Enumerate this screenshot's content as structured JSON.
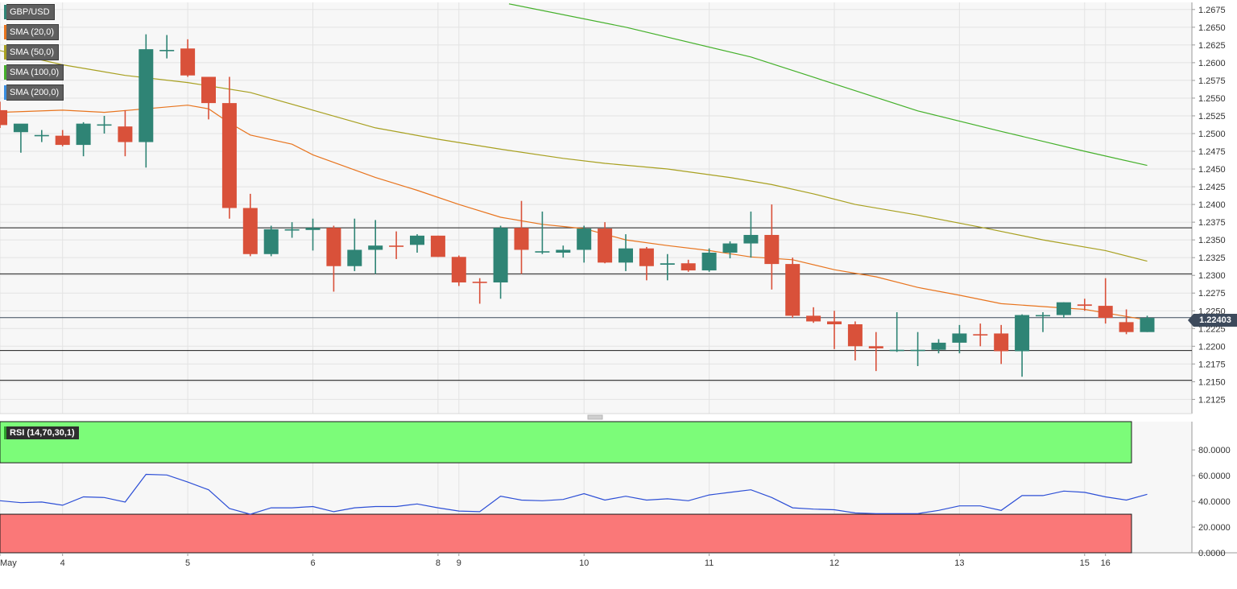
{
  "chart_data": {
    "type": "candlestick",
    "symbol": "GBP/USD",
    "last_price": "1.22403",
    "indicators": [
      {
        "label": "SMA (20,0)",
        "color": "#e8741e"
      },
      {
        "label": "SMA (50,0)",
        "color": "#a8a020"
      },
      {
        "label": "SMA (100,0)",
        "color": "#44b02a"
      },
      {
        "label": "SMA (200,0)",
        "color": "#3a8ee0"
      }
    ],
    "price_axis": {
      "ylim": [
        1.2105,
        1.2685
      ],
      "ticks": [
        "1.2675",
        "1.2650",
        "1.2625",
        "1.2600",
        "1.2575",
        "1.2550",
        "1.2525",
        "1.2500",
        "1.2475",
        "1.2450",
        "1.2425",
        "1.2400",
        "1.2375",
        "1.2350",
        "1.2325",
        "1.2300",
        "1.2275",
        "1.2250",
        "1.2225",
        "1.2200",
        "1.2175",
        "1.2150",
        "1.2125"
      ]
    },
    "x_axis": {
      "labels": [
        {
          "text": "May",
          "index": 0
        },
        {
          "text": "4",
          "index": 3
        },
        {
          "text": "5",
          "index": 9
        },
        {
          "text": "6",
          "index": 15
        },
        {
          "text": "8",
          "index": 21
        },
        {
          "text": "9",
          "index": 22
        },
        {
          "text": "10",
          "index": 28
        },
        {
          "text": "11",
          "index": 34
        },
        {
          "text": "12",
          "index": 40
        },
        {
          "text": "13",
          "index": 46
        },
        {
          "text": "15",
          "index": 52
        },
        {
          "text": "16",
          "index": 53
        }
      ]
    },
    "horizontal_levels": [
      1.2367,
      1.2302,
      1.2194,
      1.2152
    ],
    "last_price_line": 1.22403,
    "candles": [
      {
        "o": 1.2533,
        "h": 1.2545,
        "l": 1.2508,
        "c": 1.2512
      },
      {
        "o": 1.2502,
        "h": 1.251,
        "l": 1.2473,
        "c": 1.2514
      },
      {
        "o": 1.2497,
        "h": 1.2505,
        "l": 1.2488,
        "c": 1.2498
      },
      {
        "o": 1.2497,
        "h": 1.2505,
        "l": 1.2482,
        "c": 1.2484
      },
      {
        "o": 1.2484,
        "h": 1.2516,
        "l": 1.2468,
        "c": 1.2514
      },
      {
        "o": 1.2513,
        "h": 1.2525,
        "l": 1.25,
        "c": 1.2513
      },
      {
        "o": 1.251,
        "h": 1.2533,
        "l": 1.2468,
        "c": 1.2488
      },
      {
        "o": 1.2488,
        "h": 1.264,
        "l": 1.2452,
        "c": 1.2619
      },
      {
        "o": 1.2618,
        "h": 1.2639,
        "l": 1.2606,
        "c": 1.2618
      },
      {
        "o": 1.262,
        "h": 1.2633,
        "l": 1.258,
        "c": 1.2582
      },
      {
        "o": 1.258,
        "h": 1.258,
        "l": 1.252,
        "c": 1.2543
      },
      {
        "o": 1.2543,
        "h": 1.258,
        "l": 1.238,
        "c": 1.2395
      },
      {
        "o": 1.2395,
        "h": 1.2415,
        "l": 1.2327,
        "c": 1.233
      },
      {
        "o": 1.233,
        "h": 1.237,
        "l": 1.2327,
        "c": 1.2365
      },
      {
        "o": 1.2365,
        "h": 1.2375,
        "l": 1.2353,
        "c": 1.2365
      },
      {
        "o": 1.2364,
        "h": 1.238,
        "l": 1.2335,
        "c": 1.2367
      },
      {
        "o": 1.2367,
        "h": 1.237,
        "l": 1.2277,
        "c": 1.2313
      },
      {
        "o": 1.2313,
        "h": 1.238,
        "l": 1.2306,
        "c": 1.2336
      },
      {
        "o": 1.2336,
        "h": 1.2378,
        "l": 1.2302,
        "c": 1.2342
      },
      {
        "o": 1.2342,
        "h": 1.2362,
        "l": 1.2323,
        "c": 1.2341
      },
      {
        "o": 1.2343,
        "h": 1.2358,
        "l": 1.2332,
        "c": 1.2356
      },
      {
        "o": 1.2356,
        "h": 1.2356,
        "l": 1.2326,
        "c": 1.2326
      },
      {
        "o": 1.2326,
        "h": 1.2328,
        "l": 1.2285,
        "c": 1.229
      },
      {
        "o": 1.2291,
        "h": 1.2296,
        "l": 1.226,
        "c": 1.229
      },
      {
        "o": 1.229,
        "h": 1.237,
        "l": 1.2267,
        "c": 1.2367
      },
      {
        "o": 1.2367,
        "h": 1.2405,
        "l": 1.2302,
        "c": 1.2336
      },
      {
        "o": 1.2334,
        "h": 1.239,
        "l": 1.233,
        "c": 1.2334
      },
      {
        "o": 1.2332,
        "h": 1.2342,
        "l": 1.2325,
        "c": 1.2336
      },
      {
        "o": 1.2336,
        "h": 1.237,
        "l": 1.2318,
        "c": 1.2366
      },
      {
        "o": 1.2366,
        "h": 1.2375,
        "l": 1.2317,
        "c": 1.2318
      },
      {
        "o": 1.2318,
        "h": 1.2358,
        "l": 1.2306,
        "c": 1.2338
      },
      {
        "o": 1.2338,
        "h": 1.234,
        "l": 1.2293,
        "c": 1.2313
      },
      {
        "o": 1.2315,
        "h": 1.233,
        "l": 1.2293,
        "c": 1.2317
      },
      {
        "o": 1.2317,
        "h": 1.2322,
        "l": 1.2305,
        "c": 1.2307
      },
      {
        "o": 1.2307,
        "h": 1.2338,
        "l": 1.2305,
        "c": 1.2332
      },
      {
        "o": 1.2332,
        "h": 1.2348,
        "l": 1.2324,
        "c": 1.2345
      },
      {
        "o": 1.2345,
        "h": 1.239,
        "l": 1.2325,
        "c": 1.2357
      },
      {
        "o": 1.2357,
        "h": 1.24,
        "l": 1.228,
        "c": 1.2316
      },
      {
        "o": 1.2316,
        "h": 1.2325,
        "l": 1.224,
        "c": 1.2243
      },
      {
        "o": 1.2243,
        "h": 1.2255,
        "l": 1.2233,
        "c": 1.2235
      },
      {
        "o": 1.2235,
        "h": 1.225,
        "l": 1.2196,
        "c": 1.2231
      },
      {
        "o": 1.2231,
        "h": 1.2235,
        "l": 1.218,
        "c": 1.22
      },
      {
        "o": 1.22,
        "h": 1.222,
        "l": 1.2165,
        "c": 1.2197
      },
      {
        "o": 1.2195,
        "h": 1.2248,
        "l": 1.2192,
        "c": 1.2195
      },
      {
        "o": 1.2195,
        "h": 1.222,
        "l": 1.2172,
        "c": 1.2195
      },
      {
        "o": 1.2195,
        "h": 1.221,
        "l": 1.219,
        "c": 1.2205
      },
      {
        "o": 1.2205,
        "h": 1.223,
        "l": 1.219,
        "c": 1.2218
      },
      {
        "o": 1.2217,
        "h": 1.2232,
        "l": 1.22,
        "c": 1.2216
      },
      {
        "o": 1.2218,
        "h": 1.223,
        "l": 1.2175,
        "c": 1.2193
      },
      {
        "o": 1.2193,
        "h": 1.2245,
        "l": 1.2157,
        "c": 1.2244
      },
      {
        "o": 1.2244,
        "h": 1.2248,
        "l": 1.222,
        "c": 1.2244
      },
      {
        "o": 1.2244,
        "h": 1.2262,
        "l": 1.224,
        "c": 1.2262
      },
      {
        "o": 1.2259,
        "h": 1.2267,
        "l": 1.225,
        "c": 1.2257
      },
      {
        "o": 1.2257,
        "h": 1.2296,
        "l": 1.2232,
        "c": 1.224
      },
      {
        "o": 1.2234,
        "h": 1.2252,
        "l": 1.2217,
        "c": 1.222
      },
      {
        "o": 1.222,
        "h": 1.2243,
        "l": 1.222,
        "c": 1.224
      }
    ],
    "sma20": [
      [
        0,
        1.253
      ],
      [
        3,
        1.2533
      ],
      [
        5,
        1.253
      ],
      [
        7,
        1.2535
      ],
      [
        9,
        1.254
      ],
      [
        10,
        1.2535
      ],
      [
        11,
        1.2515
      ],
      [
        12,
        1.2498
      ],
      [
        14,
        1.2485
      ],
      [
        15,
        1.247
      ],
      [
        18,
        1.2438
      ],
      [
        20,
        1.242
      ],
      [
        22,
        1.24
      ],
      [
        24,
        1.2382
      ],
      [
        26,
        1.2372
      ],
      [
        28,
        1.2366
      ],
      [
        30,
        1.235
      ],
      [
        32,
        1.2342
      ],
      [
        34,
        1.2335
      ],
      [
        36,
        1.2326
      ],
      [
        38,
        1.2322
      ],
      [
        40,
        1.2308
      ],
      [
        42,
        1.2298
      ],
      [
        44,
        1.2283
      ],
      [
        46,
        1.2272
      ],
      [
        48,
        1.226
      ],
      [
        50,
        1.2256
      ],
      [
        52,
        1.2252
      ],
      [
        54,
        1.2242
      ],
      [
        55,
        1.2237
      ]
    ],
    "sma50": [
      [
        0,
        1.2617
      ],
      [
        3,
        1.2597
      ],
      [
        6,
        1.2582
      ],
      [
        9,
        1.2572
      ],
      [
        12,
        1.2558
      ],
      [
        15,
        1.2533
      ],
      [
        18,
        1.2508
      ],
      [
        21,
        1.2492
      ],
      [
        24,
        1.2478
      ],
      [
        27,
        1.2465
      ],
      [
        29,
        1.2458
      ],
      [
        32,
        1.245
      ],
      [
        35,
        1.2438
      ],
      [
        37,
        1.2428
      ],
      [
        39,
        1.2415
      ],
      [
        41,
        1.24
      ],
      [
        44,
        1.2385
      ],
      [
        47,
        1.2368
      ],
      [
        50,
        1.235
      ],
      [
        53,
        1.2335
      ],
      [
        55,
        1.232
      ]
    ],
    "sma100": [
      [
        24.4,
        1.2683
      ],
      [
        30,
        1.265
      ],
      [
        36,
        1.2608
      ],
      [
        40,
        1.257
      ],
      [
        44,
        1.2532
      ],
      [
        48,
        1.2503
      ],
      [
        52,
        1.2475
      ],
      [
        55,
        1.2455
      ]
    ],
    "rsi": {
      "label": "RSI (14,70,30,1)",
      "overbought": 70,
      "oversold": 30,
      "ylim": [
        0,
        102
      ],
      "ticks": [
        "80.0000",
        "60.0000",
        "40.0000",
        "20.0000",
        "0.0000"
      ],
      "values": [
        40.5,
        39,
        39.5,
        37,
        43.5,
        43,
        39.5,
        61,
        60.5,
        55,
        49,
        34.5,
        30,
        35,
        35,
        36,
        32,
        35,
        36,
        36,
        38,
        35,
        32.5,
        32,
        44,
        41,
        40.5,
        41.5,
        46,
        41,
        44,
        41,
        42,
        40.5,
        45,
        47,
        49,
        43,
        35,
        34,
        33.5,
        31,
        30.5,
        30.5,
        30.5,
        33,
        36.5,
        36.5,
        33,
        44.5,
        44.5,
        48,
        47,
        43.5,
        41,
        45.5
      ]
    },
    "colors": {
      "up": "#2f8475",
      "down": "#d9513a",
      "rsi_line": "#2d4fd6",
      "rsi_overbought": "#7cfc79",
      "rsi_oversold": "#fa7878"
    }
  }
}
